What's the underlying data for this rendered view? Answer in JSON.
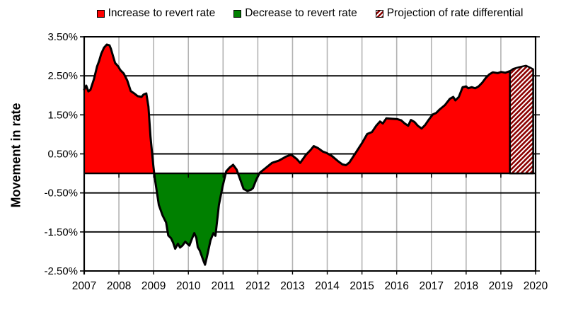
{
  "page": {
    "background": "#FFFFFF"
  },
  "legend": {
    "items": [
      {
        "label": "Increase to revert rate",
        "swatch": "solid-red"
      },
      {
        "label": "Decrease to revert rate",
        "swatch": "solid-green"
      },
      {
        "label": "Projection of rate differential",
        "swatch": "hatched"
      }
    ]
  },
  "chart_data": {
    "type": "area",
    "title": "",
    "xlabel": "",
    "ylabel": "Movement in rate",
    "ylim": [
      -2.5,
      3.5
    ],
    "xlim": [
      2007,
      2020
    ],
    "y_tick_values": [
      3.5,
      2.5,
      1.5,
      0.5,
      -0.5,
      -1.5,
      -2.5
    ],
    "y_tick_labels": [
      "3.50%",
      "2.50%",
      "1.50%",
      "0.50%",
      "-0.50%",
      "-1.50%",
      "-2.50%"
    ],
    "x_tick_values": [
      2007,
      2008,
      2009,
      2010,
      2011,
      2012,
      2013,
      2014,
      2015,
      2016,
      2017,
      2018,
      2019,
      2020
    ],
    "x_tick_labels": [
      "2007",
      "2008",
      "2009",
      "2010",
      "2011",
      "2012",
      "2013",
      "2014",
      "2015",
      "2016",
      "2017",
      "2018",
      "2019",
      "2020"
    ],
    "grid": {
      "horizontal": true,
      "vertical": true
    },
    "legend_position": "top",
    "colors": {
      "increase": "#FF0000",
      "decrease": "#008000",
      "projection_stripe": "#8B0000",
      "outline": "#000000",
      "horizontal_grid": "#000000",
      "vertical_grid": "#B3B3B3"
    },
    "series": [
      {
        "name": "Rate differential (red = increase to revert rate, green = decrease to revert rate)",
        "style": "area-split-by-sign",
        "points": [
          [
            2007.0,
            2.15
          ],
          [
            2007.06,
            2.25
          ],
          [
            2007.12,
            2.1
          ],
          [
            2007.18,
            2.14
          ],
          [
            2007.28,
            2.41
          ],
          [
            2007.37,
            2.74
          ],
          [
            2007.43,
            2.88
          ],
          [
            2007.49,
            3.06
          ],
          [
            2007.57,
            3.22
          ],
          [
            2007.65,
            3.3
          ],
          [
            2007.73,
            3.28
          ],
          [
            2007.77,
            3.19
          ],
          [
            2007.83,
            3.01
          ],
          [
            2007.89,
            2.83
          ],
          [
            2007.98,
            2.74
          ],
          [
            2008.04,
            2.65
          ],
          [
            2008.14,
            2.56
          ],
          [
            2008.24,
            2.38
          ],
          [
            2008.34,
            2.11
          ],
          [
            2008.44,
            2.05
          ],
          [
            2008.54,
            1.98
          ],
          [
            2008.65,
            1.96
          ],
          [
            2008.71,
            2.02
          ],
          [
            2008.79,
            2.05
          ],
          [
            2008.85,
            1.71
          ],
          [
            2008.91,
            0.94
          ],
          [
            2008.99,
            0.2
          ],
          [
            2009.03,
            -0.1
          ],
          [
            2009.15,
            -0.81
          ],
          [
            2009.26,
            -1.08
          ],
          [
            2009.36,
            -1.26
          ],
          [
            2009.42,
            -1.59
          ],
          [
            2009.5,
            -1.66
          ],
          [
            2009.56,
            -1.77
          ],
          [
            2009.62,
            -1.93
          ],
          [
            2009.7,
            -1.8
          ],
          [
            2009.76,
            -1.9
          ],
          [
            2009.83,
            -1.85
          ],
          [
            2009.91,
            -1.75
          ],
          [
            2009.97,
            -1.8
          ],
          [
            2010.03,
            -1.85
          ],
          [
            2010.11,
            -1.66
          ],
          [
            2010.17,
            -1.53
          ],
          [
            2010.23,
            -1.65
          ],
          [
            2010.27,
            -1.89
          ],
          [
            2010.33,
            -1.98
          ],
          [
            2010.44,
            -2.25
          ],
          [
            2010.48,
            -2.34
          ],
          [
            2010.54,
            -2.12
          ],
          [
            2010.64,
            -1.71
          ],
          [
            2010.72,
            -1.53
          ],
          [
            2010.78,
            -1.6
          ],
          [
            2010.88,
            -0.81
          ],
          [
            2010.98,
            -0.36
          ],
          [
            2011.09,
            0.05
          ],
          [
            2011.19,
            0.15
          ],
          [
            2011.29,
            0.22
          ],
          [
            2011.39,
            0.1
          ],
          [
            2011.49,
            -0.15
          ],
          [
            2011.59,
            -0.4
          ],
          [
            2011.7,
            -0.45
          ],
          [
            2011.8,
            -0.42
          ],
          [
            2011.86,
            -0.38
          ],
          [
            2011.96,
            -0.15
          ],
          [
            2012.06,
            0.02
          ],
          [
            2012.2,
            0.12
          ],
          [
            2012.41,
            0.27
          ],
          [
            2012.61,
            0.33
          ],
          [
            2012.81,
            0.43
          ],
          [
            2012.96,
            0.48
          ],
          [
            2013.12,
            0.37
          ],
          [
            2013.22,
            0.27
          ],
          [
            2013.38,
            0.47
          ],
          [
            2013.52,
            0.6
          ],
          [
            2013.61,
            0.7
          ],
          [
            2013.73,
            0.65
          ],
          [
            2013.87,
            0.56
          ],
          [
            2013.99,
            0.52
          ],
          [
            2014.13,
            0.45
          ],
          [
            2014.3,
            0.32
          ],
          [
            2014.44,
            0.23
          ],
          [
            2014.54,
            0.21
          ],
          [
            2014.64,
            0.28
          ],
          [
            2014.8,
            0.5
          ],
          [
            2015.01,
            0.79
          ],
          [
            2015.15,
            1.01
          ],
          [
            2015.29,
            1.06
          ],
          [
            2015.41,
            1.22
          ],
          [
            2015.52,
            1.33
          ],
          [
            2015.6,
            1.28
          ],
          [
            2015.7,
            1.41
          ],
          [
            2015.86,
            1.4
          ],
          [
            2016.02,
            1.39
          ],
          [
            2016.13,
            1.36
          ],
          [
            2016.23,
            1.28
          ],
          [
            2016.33,
            1.22
          ],
          [
            2016.41,
            1.37
          ],
          [
            2016.51,
            1.32
          ],
          [
            2016.61,
            1.22
          ],
          [
            2016.72,
            1.15
          ],
          [
            2016.82,
            1.24
          ],
          [
            2016.92,
            1.37
          ],
          [
            2017.04,
            1.51
          ],
          [
            2017.14,
            1.55
          ],
          [
            2017.24,
            1.64
          ],
          [
            2017.39,
            1.75
          ],
          [
            2017.53,
            1.91
          ],
          [
            2017.63,
            1.96
          ],
          [
            2017.69,
            1.87
          ],
          [
            2017.79,
            1.96
          ],
          [
            2017.9,
            2.21
          ],
          [
            2018.0,
            2.23
          ],
          [
            2018.06,
            2.18
          ],
          [
            2018.16,
            2.21
          ],
          [
            2018.26,
            2.18
          ],
          [
            2018.36,
            2.23
          ],
          [
            2018.46,
            2.32
          ],
          [
            2018.57,
            2.45
          ],
          [
            2018.67,
            2.54
          ],
          [
            2018.77,
            2.59
          ],
          [
            2018.91,
            2.57
          ],
          [
            2019.01,
            2.6
          ],
          [
            2019.13,
            2.58
          ],
          [
            2019.26,
            2.62
          ]
        ]
      },
      {
        "name": "Projection of rate differential",
        "style": "hatched-area",
        "points": [
          [
            2019.26,
            2.62
          ],
          [
            2019.36,
            2.68
          ],
          [
            2019.52,
            2.72
          ],
          [
            2019.72,
            2.76
          ],
          [
            2019.82,
            2.72
          ],
          [
            2019.93,
            2.67
          ]
        ]
      }
    ]
  }
}
